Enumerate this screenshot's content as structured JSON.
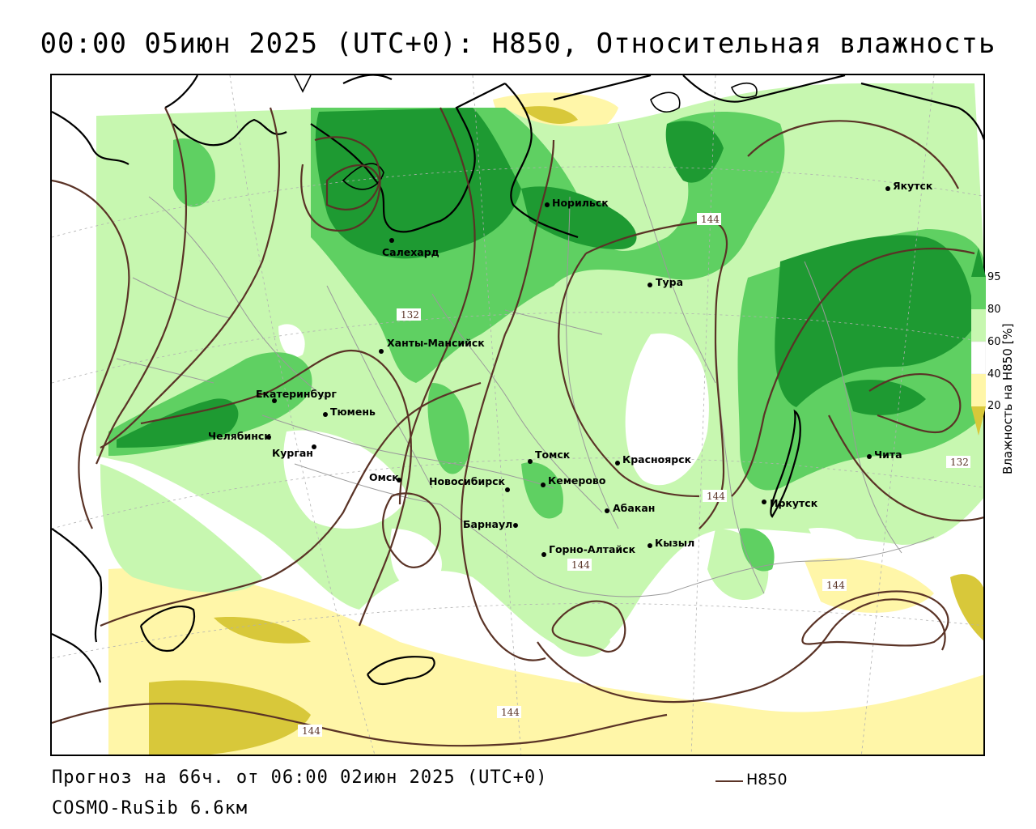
{
  "header": {
    "title": "00:00 05июн 2025 (UTC+0): H850, Относительная влажность"
  },
  "footer": {
    "forecast": "Прогноз на 66ч. от 06:00 02июн 2025 (UTC+0)",
    "model": "COSMO-RuSib 6.6км"
  },
  "legend": {
    "line_label": "H850",
    "line_color": "#5a3326"
  },
  "colorbar": {
    "title": "Влажность на H850 [%]",
    "ticks": [
      "95",
      "80",
      "60",
      "40",
      "20"
    ],
    "colors": {
      "very_dry": "#d8c83a",
      "dry": "#fff6a8",
      "neutral": "#ffffff",
      "moist": "#c7f7b0",
      "wet": "#5fd062",
      "saturated": "#1e9a32"
    }
  },
  "isoline_labels": [
    "132",
    "144",
    "144",
    "144",
    "144",
    "132",
    "144",
    "144"
  ],
  "cities": [
    {
      "name": "Якутск"
    },
    {
      "name": "Норильск"
    },
    {
      "name": "Салехард"
    },
    {
      "name": "Тура"
    },
    {
      "name": "Ханты-Мансийск"
    },
    {
      "name": "Екатеринбург"
    },
    {
      "name": "Тюмень"
    },
    {
      "name": "Челябинск"
    },
    {
      "name": "Курган"
    },
    {
      "name": "Омск"
    },
    {
      "name": "Томск"
    },
    {
      "name": "Новосибирск"
    },
    {
      "name": "Кемерово"
    },
    {
      "name": "Красноярск"
    },
    {
      "name": "Абакан"
    },
    {
      "name": "Барнаул"
    },
    {
      "name": "Иркутск"
    },
    {
      "name": "Чита"
    },
    {
      "name": "Кызыл"
    },
    {
      "name": "Горно-Алтайск"
    }
  ]
}
